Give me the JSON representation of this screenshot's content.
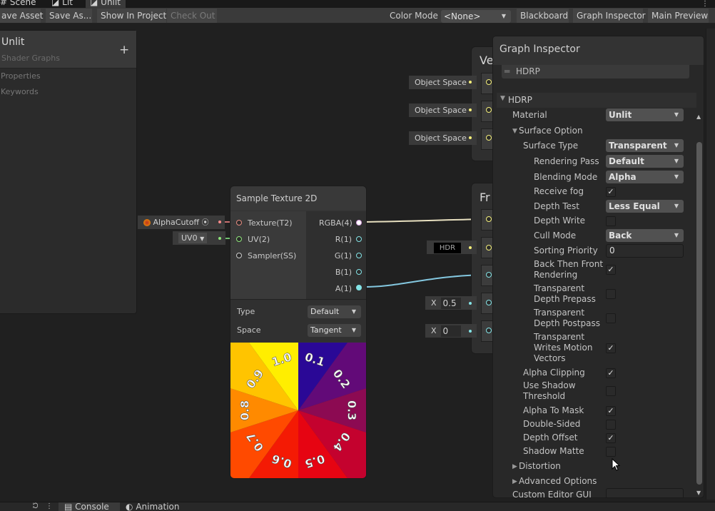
{
  "tabs": [
    {
      "label": "Scene"
    },
    {
      "label": "Lit"
    },
    {
      "label": "Unlit",
      "active": true
    }
  ],
  "toolbar": {
    "save_asset": "ave Asset",
    "save_as": "Save As...",
    "show_in_project": "Show In Project",
    "check_out": "Check Out",
    "color_mode_label": "Color Mode",
    "color_mode_value": "<None>",
    "blackboard": "Blackboard",
    "graph_inspector": "Graph Inspector",
    "main_preview": "Main Preview"
  },
  "blackboard": {
    "title": "Unlit",
    "subtitle": "Shader Graphs",
    "add": "+",
    "sections": [
      "Properties",
      "Keywords"
    ]
  },
  "vertex_node": {
    "title": "Ve",
    "inputs": [
      "Object Space",
      "Object Space",
      "Object Space"
    ]
  },
  "fragment_node": {
    "title": "Fr",
    "hdr": "HDR",
    "x_label": "X",
    "x1": "0.5",
    "x2": "0"
  },
  "sample_texture": {
    "title": "Sample Texture 2D",
    "inputs": [
      "Texture(T2)",
      "UV(2)",
      "Sampler(SS)"
    ],
    "outputs": [
      "RGBA(4)",
      "R(1)",
      "G(1)",
      "B(1)",
      "A(1)"
    ],
    "type_label": "Type",
    "type_value": "Default",
    "space_label": "Space",
    "space_value": "Tangent",
    "property_name": "AlphaCutoff",
    "uv_value": "UV0",
    "preview_labels": [
      "0.1",
      "0.2",
      "0.3",
      "0.4",
      "0.5",
      "0.6",
      "0.7",
      "0.8",
      "0.9",
      "1.0"
    ],
    "preview_colors": [
      "#2a0896",
      "#620a78",
      "#8c0a52",
      "#c4022e",
      "#e60412",
      "#f41a04",
      "#ff4a00",
      "#ff8a00",
      "#ffc400",
      "#ffee00"
    ]
  },
  "inspector": {
    "title": "Graph Inspector",
    "target_item": "HDRP",
    "section": "HDRP",
    "rows": [
      {
        "label": "Material",
        "level": 0,
        "type": "dropdown",
        "value": "Unlit"
      },
      {
        "label": "Surface Option",
        "level": 0,
        "type": "foldout",
        "expanded": true
      },
      {
        "label": "Surface Type",
        "level": 1,
        "type": "dropdown",
        "value": "Transparent"
      },
      {
        "label": "Rendering Pass",
        "level": 2,
        "type": "dropdown",
        "value": "Default"
      },
      {
        "label": "Blending Mode",
        "level": 2,
        "type": "dropdown",
        "value": "Alpha"
      },
      {
        "label": "Receive fog",
        "level": 2,
        "type": "checkbox",
        "checked": true
      },
      {
        "label": "Depth Test",
        "level": 2,
        "type": "dropdown",
        "value": "Less Equal"
      },
      {
        "label": "Depth Write",
        "level": 2,
        "type": "checkbox",
        "checked": false
      },
      {
        "label": "Cull Mode",
        "level": 2,
        "type": "dropdown",
        "value": "Back"
      },
      {
        "label": "Sorting Priority",
        "level": 2,
        "type": "text",
        "value": "0"
      },
      {
        "label": "Back Then Front\nRendering",
        "level": 2,
        "type": "checkbox",
        "checked": true
      },
      {
        "label": "Transparent\nDepth Prepass",
        "level": 2,
        "type": "checkbox",
        "checked": false
      },
      {
        "label": "Transparent\nDepth Postpass",
        "level": 2,
        "type": "checkbox",
        "checked": false
      },
      {
        "label": "Transparent\nWrites Motion\nVectors",
        "level": 2,
        "type": "checkbox",
        "checked": true
      },
      {
        "label": "Alpha Clipping",
        "level": 1,
        "type": "checkbox",
        "checked": true
      },
      {
        "label": "Use Shadow\nThreshold",
        "level": 1,
        "type": "checkbox",
        "checked": false
      },
      {
        "label": "Alpha To Mask",
        "level": 1,
        "type": "checkbox",
        "checked": true
      },
      {
        "label": "Double-Sided",
        "level": 1,
        "type": "checkbox",
        "checked": false
      },
      {
        "label": "Depth Offset",
        "level": 1,
        "type": "checkbox",
        "checked": true
      },
      {
        "label": "Shadow Matte",
        "level": 1,
        "type": "checkbox",
        "checked": false
      },
      {
        "label": "Distortion",
        "level": 0,
        "type": "foldout",
        "expanded": false
      },
      {
        "label": "Advanced Options",
        "level": 0,
        "type": "foldout",
        "expanded": false
      },
      {
        "label": "Custom Editor GUI",
        "level": 0,
        "type": "text",
        "value": ""
      }
    ]
  },
  "bottom_tabs": [
    {
      "label": "Console"
    },
    {
      "label": "Animation"
    }
  ],
  "colors": {
    "vector3_port": "#f5ef7a",
    "float_port": "#84e4e7",
    "texture_port": "#ff8b8b",
    "uv_port": "#8ee67a"
  }
}
